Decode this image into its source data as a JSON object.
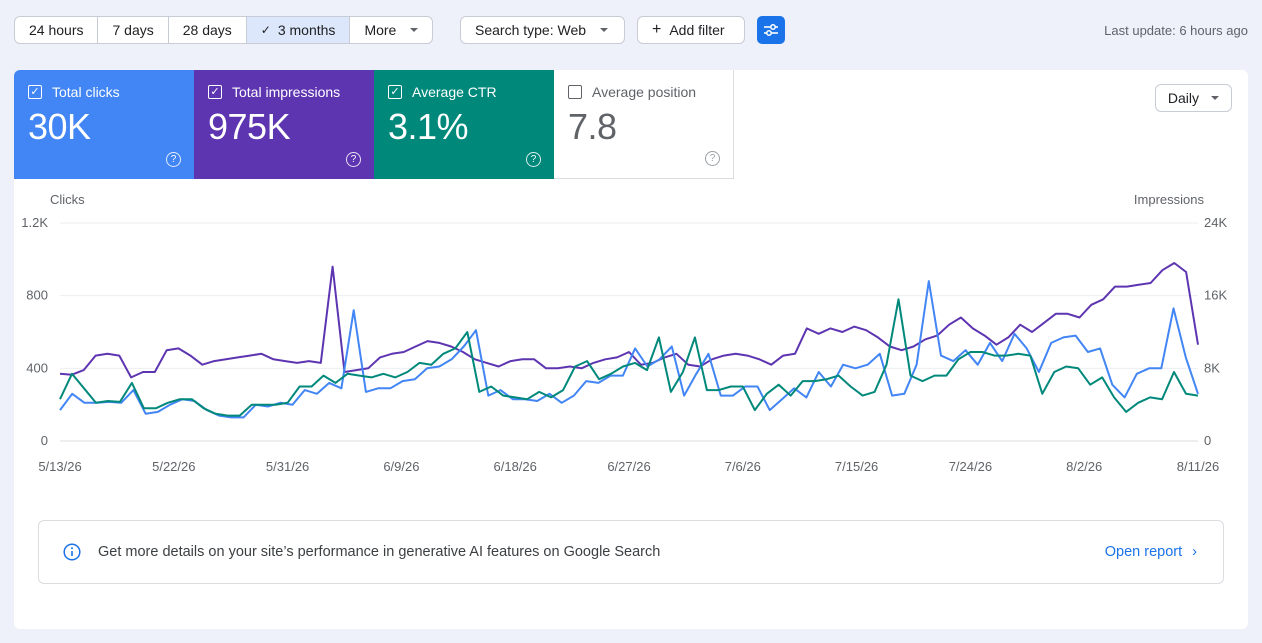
{
  "toolbar": {
    "ranges": [
      {
        "label": "24 hours",
        "selected": false
      },
      {
        "label": "7 days",
        "selected": false
      },
      {
        "label": "28 days",
        "selected": false
      },
      {
        "label": "3 months",
        "selected": true
      },
      {
        "label": "More",
        "selected": false
      }
    ],
    "search_type": "Search type: Web",
    "add_filter": "Add filter",
    "last_update": "Last update: 6 hours ago"
  },
  "metrics": [
    {
      "label": "Total clicks",
      "value": "30K",
      "checked": true,
      "color": "#4285f4"
    },
    {
      "label": "Total impressions",
      "value": "975K",
      "checked": true,
      "color": "#5e35b1"
    },
    {
      "label": "Average CTR",
      "value": "3.1%",
      "checked": true,
      "color": "#00897b"
    },
    {
      "label": "Average position",
      "value": "7.8",
      "checked": false,
      "color": "#ffffff"
    }
  ],
  "granularity": "Daily",
  "chart_data": {
    "type": "line",
    "left_axis": {
      "label": "Clicks",
      "ticks": [
        "0",
        "400",
        "800",
        "1.2K"
      ],
      "range": [
        0,
        1200
      ]
    },
    "right_axis": {
      "label": "Impressions",
      "ticks": [
        "0",
        "8K",
        "16K",
        "24K"
      ],
      "range": [
        0,
        24000
      ]
    },
    "x_ticks": [
      "5/13/26",
      "5/22/26",
      "5/31/26",
      "6/9/26",
      "6/18/26",
      "6/27/26",
      "7/6/26",
      "7/15/26",
      "7/24/26",
      "8/2/26",
      "8/11/26"
    ],
    "x_range": [
      "5/13/26",
      "8/11/26"
    ],
    "series": [
      {
        "name": "Total clicks",
        "color": "#4285f4",
        "axis": "left",
        "values": [
          170,
          260,
          210,
          210,
          215,
          210,
          280,
          150,
          160,
          200,
          230,
          220,
          170,
          140,
          130,
          130,
          200,
          190,
          210,
          200,
          280,
          260,
          320,
          290,
          720,
          270,
          290,
          290,
          330,
          340,
          400,
          410,
          450,
          520,
          610,
          250,
          280,
          230,
          230,
          220,
          260,
          210,
          250,
          330,
          320,
          360,
          360,
          510,
          410,
          450,
          520,
          250,
          370,
          480,
          250,
          250,
          300,
          300,
          170,
          230,
          290,
          240,
          380,
          300,
          420,
          400,
          420,
          480,
          250,
          260,
          420,
          880,
          470,
          440,
          500,
          420,
          540,
          440,
          590,
          510,
          380,
          540,
          570,
          580,
          490,
          510,
          310,
          240,
          370,
          400,
          400,
          730,
          460,
          260
        ]
      },
      {
        "name": "Total impressions",
        "color": "#5e35b1",
        "axis": "left",
        "values": [
          370,
          365,
          390,
          470,
          480,
          470,
          350,
          380,
          380,
          500,
          510,
          470,
          420,
          440,
          450,
          460,
          470,
          480,
          450,
          440,
          430,
          440,
          430,
          960,
          380,
          390,
          400,
          460,
          480,
          490,
          520,
          550,
          540,
          520,
          490,
          450,
          430,
          410,
          440,
          450,
          450,
          400,
          400,
          410,
          400,
          430,
          450,
          460,
          490,
          420,
          430,
          460,
          480,
          420,
          410,
          450,
          470,
          480,
          470,
          450,
          420,
          470,
          480,
          620,
          590,
          620,
          600,
          630,
          610,
          570,
          520,
          500,
          520,
          560,
          580,
          640,
          680,
          620,
          580,
          530,
          570,
          640,
          600,
          650,
          700,
          700,
          680,
          750,
          780,
          850,
          850,
          860,
          870,
          940,
          980,
          930,
          530
        ]
      },
      {
        "name": "Average CTR",
        "color": "#00897b",
        "axis": "left",
        "values": [
          230,
          370,
          290,
          210,
          220,
          215,
          320,
          180,
          180,
          210,
          230,
          230,
          180,
          150,
          140,
          140,
          200,
          200,
          200,
          210,
          300,
          300,
          360,
          320,
          370,
          360,
          350,
          370,
          350,
          380,
          430,
          420,
          480,
          510,
          600,
          270,
          300,
          250,
          240,
          230,
          270,
          240,
          280,
          410,
          440,
          340,
          370,
          410,
          430,
          390,
          570,
          270,
          380,
          570,
          280,
          280,
          300,
          300,
          170,
          260,
          310,
          250,
          330,
          330,
          340,
          360,
          300,
          250,
          270,
          420,
          780,
          360,
          330,
          360,
          360,
          450,
          490,
          490,
          470,
          470,
          480,
          470,
          260,
          380,
          410,
          400,
          310,
          350,
          240,
          160,
          210,
          240,
          230,
          380,
          260,
          250
        ]
      }
    ]
  },
  "banner": {
    "text": "Get more details on your site’s performance in generative AI features on Google Search",
    "link": "Open report"
  }
}
